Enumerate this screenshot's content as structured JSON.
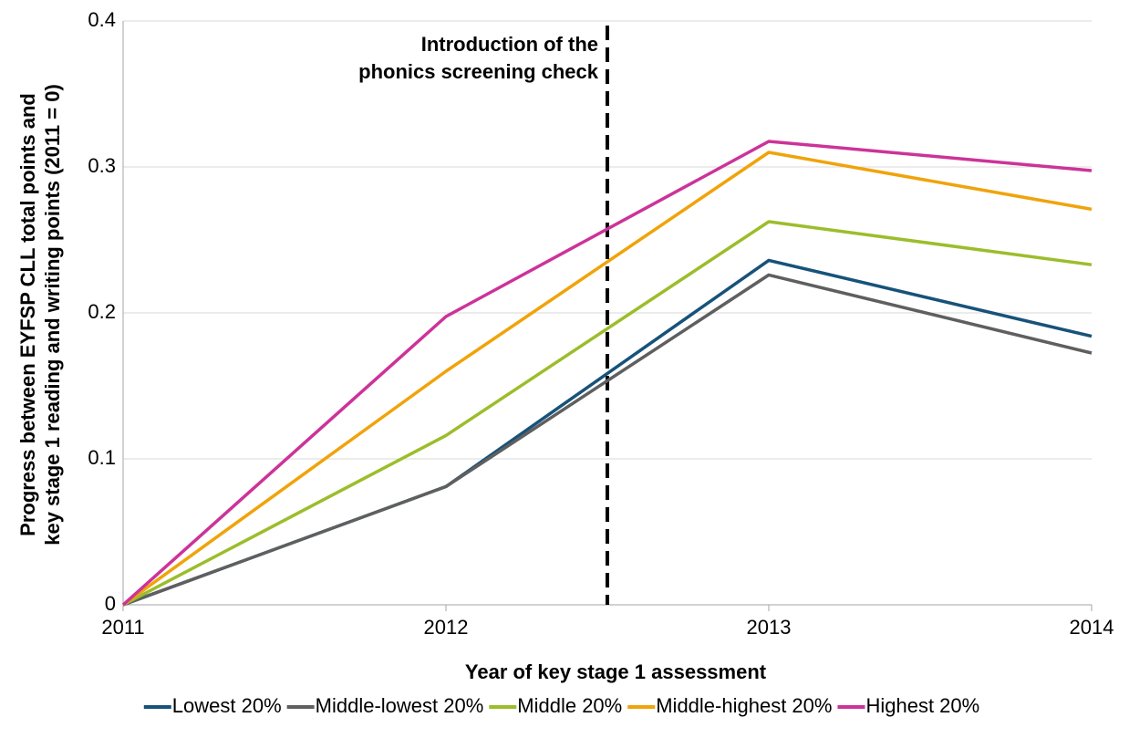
{
  "chart_data": {
    "type": "line",
    "ylabel": [
      "Progress between EYFSP CLL total points and",
      "key stage 1 reading and writing points (2011 = 0)"
    ],
    "xlabel": "Year of key stage 1 assessment",
    "x": [
      2011,
      2012,
      2013,
      2014
    ],
    "xlim": [
      2011,
      2014
    ],
    "xticks": [
      2011,
      2012,
      2013,
      2014
    ],
    "ylim": [
      0,
      0.4
    ],
    "yticks": [
      0,
      0.1,
      0.2,
      0.3,
      0.4
    ],
    "grid": true,
    "legend": "bottom",
    "annotation": {
      "text": [
        "Introduction of the",
        "phonics screening check"
      ],
      "x": 2012.5
    },
    "series": [
      {
        "name": "Lowest 20%",
        "color": "#17527a",
        "values": [
          0,
          0.081,
          0.236,
          0.184
        ]
      },
      {
        "name": "Middle-lowest 20%",
        "color": "#5f5f5f",
        "values": [
          0,
          0.081,
          0.226,
          0.1725
        ]
      },
      {
        "name": "Middle 20%",
        "color": "#9cbd2b",
        "values": [
          0,
          0.116,
          0.2625,
          0.233
        ]
      },
      {
        "name": "Middle-highest 20%",
        "color": "#f0a30a",
        "values": [
          0,
          0.16,
          0.31,
          0.271
        ]
      },
      {
        "name": "Highest 20%",
        "color": "#cc3399",
        "values": [
          0,
          0.1975,
          0.3175,
          0.2975
        ]
      }
    ]
  }
}
